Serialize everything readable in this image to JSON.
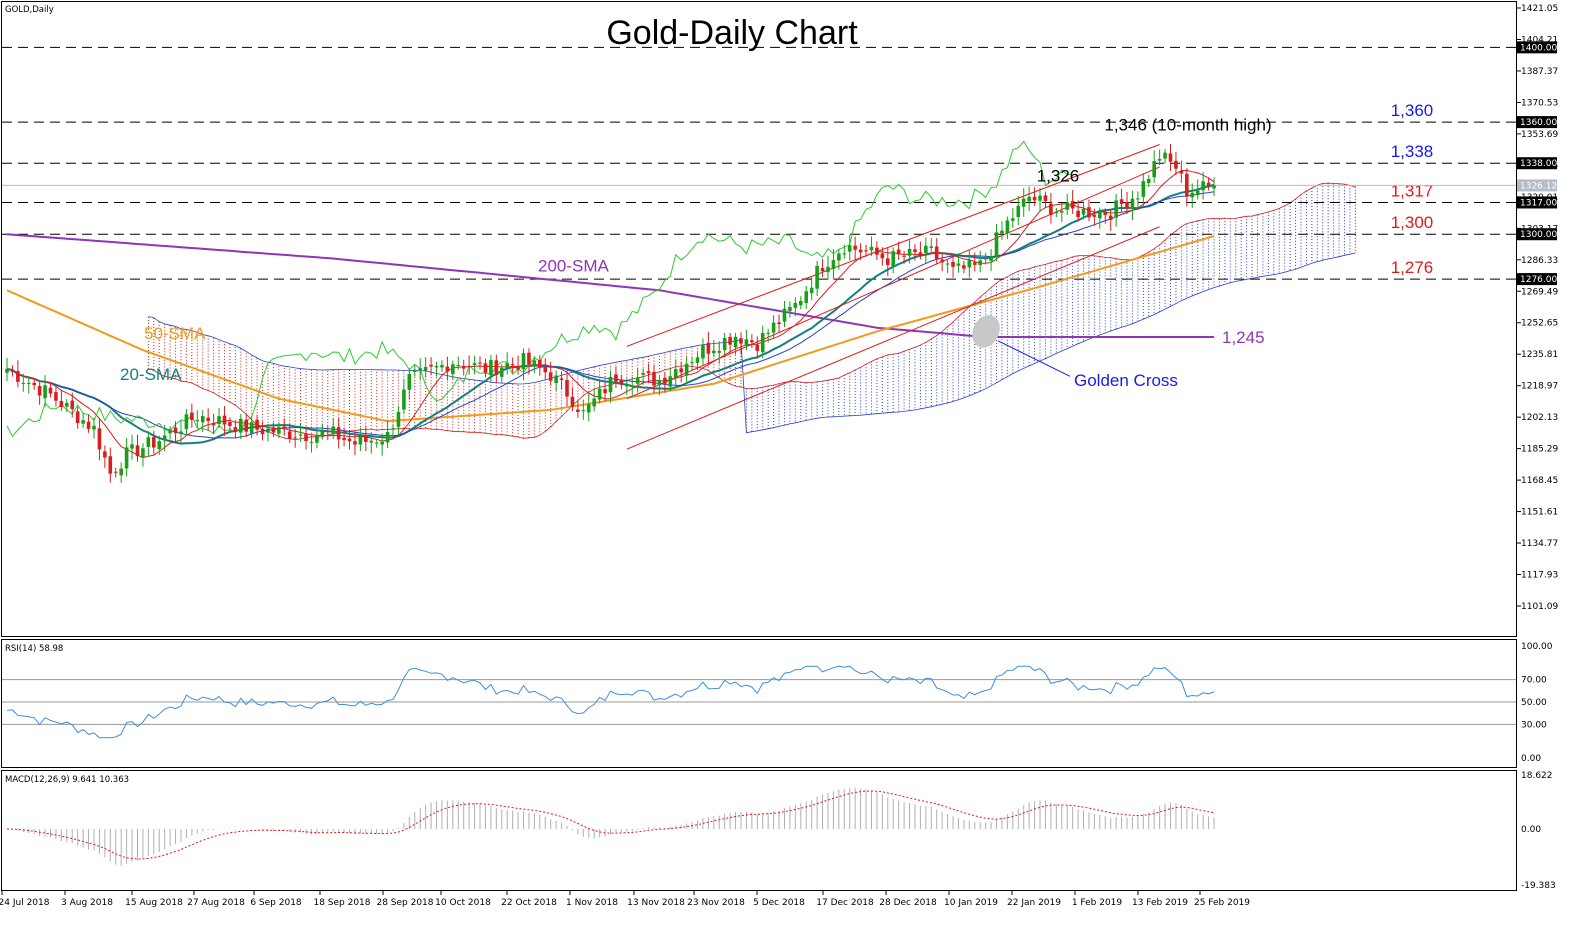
{
  "chart_data": {
    "type": "candlestick",
    "symbol_label": "GOLD,Daily",
    "title": "Gold-Daily Chart",
    "price_axis": {
      "range": [
        1090,
        1421.05
      ],
      "ticks": [
        "1421.05",
        "1404.21",
        "1387.37",
        "1370.53",
        "1353.69",
        "1336.85",
        "1320.01",
        "1303.17",
        "1286.33",
        "1269.49",
        "1252.65",
        "1235.81",
        "1218.97",
        "1202.13",
        "1185.29",
        "1168.45",
        "1151.61",
        "1134.77",
        "1117.93",
        "1101.09"
      ],
      "tags": [
        {
          "label": "1400.00",
          "value": 1400,
          "color": "#000000"
        },
        {
          "label": "1360.00",
          "value": 1360,
          "color": "#000000"
        },
        {
          "label": "1338.00",
          "value": 1338,
          "color": "#000000"
        },
        {
          "label": "1326.12",
          "value": 1326.12,
          "color": "#b4bcc8"
        },
        {
          "label": "1317.00",
          "value": 1317,
          "color": "#000000"
        },
        {
          "label": "1300.00",
          "value": 1300,
          "color": "#000000"
        },
        {
          "label": "1276.00",
          "value": 1276,
          "color": "#000000"
        }
      ]
    },
    "dates": [
      "24 Jul 2018",
      "3 Aug 2018",
      "15 Aug 2018",
      "27 Aug 2018",
      "6 Sep 2018",
      "18 Sep 2018",
      "28 Sep 2018",
      "10 Oct 2018",
      "22 Oct 2018",
      "1 Nov 2018",
      "13 Nov 2018",
      "23 Nov 2018",
      "5 Dec 2018",
      "17 Dec 2018",
      "28 Dec 2018",
      "10 Jan 2019",
      "22 Jan 2019",
      "1 Feb 2019",
      "13 Feb 2019",
      "25 Feb 2019"
    ],
    "anchors": [
      {
        "bar": 0,
        "close": 1228
      },
      {
        "bar": 8,
        "close": 1214
      },
      {
        "bar": 16,
        "close": 1196
      },
      {
        "bar": 19,
        "close": 1172
      },
      {
        "bar": 22,
        "close": 1182
      },
      {
        "bar": 28,
        "close": 1190
      },
      {
        "bar": 35,
        "close": 1203
      },
      {
        "bar": 45,
        "close": 1196
      },
      {
        "bar": 55,
        "close": 1193
      },
      {
        "bar": 60,
        "close": 1193
      },
      {
        "bar": 64,
        "close": 1188
      },
      {
        "bar": 70,
        "close": 1192
      },
      {
        "bar": 74,
        "close": 1222
      },
      {
        "bar": 82,
        "close": 1232
      },
      {
        "bar": 88,
        "close": 1228
      },
      {
        "bar": 95,
        "close": 1232
      },
      {
        "bar": 100,
        "close": 1225
      },
      {
        "bar": 104,
        "close": 1212
      },
      {
        "bar": 106,
        "close": 1204
      },
      {
        "bar": 112,
        "close": 1224
      },
      {
        "bar": 120,
        "close": 1222
      },
      {
        "bar": 128,
        "close": 1238
      },
      {
        "bar": 134,
        "close": 1246
      },
      {
        "bar": 138,
        "close": 1242
      },
      {
        "bar": 145,
        "close": 1262
      },
      {
        "bar": 150,
        "close": 1284
      },
      {
        "bar": 154,
        "close": 1294
      },
      {
        "bar": 162,
        "close": 1287
      },
      {
        "bar": 170,
        "close": 1290
      },
      {
        "bar": 174,
        "close": 1280
      },
      {
        "bar": 179,
        "close": 1283
      },
      {
        "bar": 184,
        "close": 1306
      },
      {
        "bar": 188,
        "close": 1320
      },
      {
        "bar": 193,
        "close": 1313
      },
      {
        "bar": 198,
        "close": 1312
      },
      {
        "bar": 203,
        "close": 1312
      },
      {
        "bar": 208,
        "close": 1322
      },
      {
        "bar": 212,
        "close": 1342
      },
      {
        "bar": 215,
        "close": 1336
      },
      {
        "bar": 217,
        "close": 1323
      },
      {
        "bar": 222,
        "close": 1326
      }
    ],
    "bar_count": 223,
    "bar_start_x": 7,
    "bar_end_x": 1214,
    "sma200": {
      "label": "200-SMA",
      "color": "#8e35b8",
      "points": [
        [
          0,
          1300
        ],
        [
          60,
          1287
        ],
        [
          120,
          1270
        ],
        [
          160,
          1250
        ],
        [
          180,
          1245
        ],
        [
          222,
          1245
        ]
      ]
    },
    "sma50": {
      "label": "50-SMA",
      "color": "#f29a1c",
      "points": [
        [
          0,
          1270
        ],
        [
          25,
          1238
        ],
        [
          50,
          1212
        ],
        [
          70,
          1200
        ],
        [
          100,
          1206
        ],
        [
          130,
          1220
        ],
        [
          160,
          1248
        ],
        [
          190,
          1272
        ],
        [
          222,
          1299
        ]
      ]
    },
    "sma20_label": "20-SMA",
    "sma20_color": "#147f7f",
    "channel_upper": [
      [
        114,
        1240
      ],
      [
        212,
        1348
      ]
    ],
    "channel_lower": [
      [
        114,
        1185
      ],
      [
        212,
        1304
      ]
    ],
    "channel_mid": [
      [
        114,
        1212
      ],
      [
        212,
        1336
      ]
    ],
    "levels": [
      {
        "value": 1400,
        "label": ""
      },
      {
        "value": 1360,
        "label": "1,360",
        "color": "#1a1ae6"
      },
      {
        "value": 1338,
        "label": "1,338",
        "color": "#1a1ae6"
      },
      {
        "value": 1317,
        "label": "1,317",
        "color": "#e01a1a"
      },
      {
        "value": 1300,
        "label": "1,300",
        "color": "#e01a1a"
      },
      {
        "value": 1276,
        "label": "1,276",
        "color": "#e01a1a"
      }
    ],
    "annotations": [
      {
        "text": "1,346 (10-month high)",
        "color": "#000000"
      },
      {
        "text": "1,326",
        "color": "#000000"
      },
      {
        "text": "1,245",
        "color": "#8e35b8"
      },
      {
        "text": "Golden Cross",
        "color": "#1a1ae6"
      }
    ],
    "rsi": {
      "label": "RSI(14) 58.98",
      "ticks": [
        "100.00",
        "70.00",
        "50.00",
        "30.00",
        "0.00"
      ],
      "value": 58.98
    },
    "macd": {
      "label": "MACD(12,26,9) 9.641 10.363",
      "ticks": [
        "18.622",
        "0.00",
        "-19.383"
      ],
      "value": 9.641,
      "signal": 10.363
    }
  }
}
